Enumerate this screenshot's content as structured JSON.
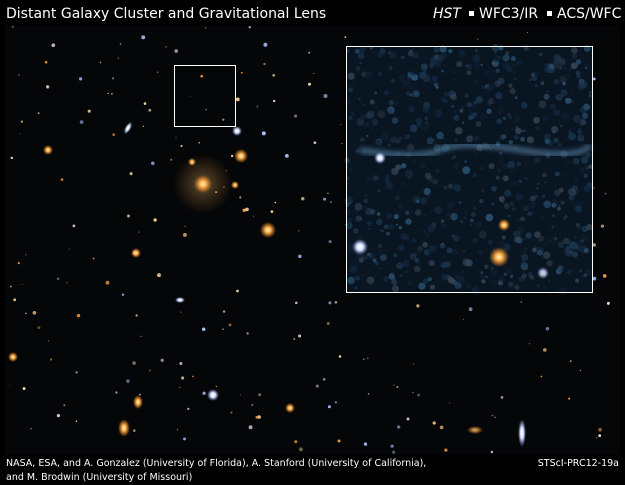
{
  "header": {
    "title": "Distant Galaxy Cluster and Gravitational Lens",
    "telescope": "HST",
    "cameras": [
      "WFC3/IR",
      "ACS/WFC"
    ]
  },
  "credits": {
    "lines": [
      "NASA, ESA, and A. Gonzalez (University of Florida), A. Stanford (University of California),",
      "and M. Brodwin (University of Missouri)"
    ],
    "release_id": "STScI-PRC12-19a"
  }
}
